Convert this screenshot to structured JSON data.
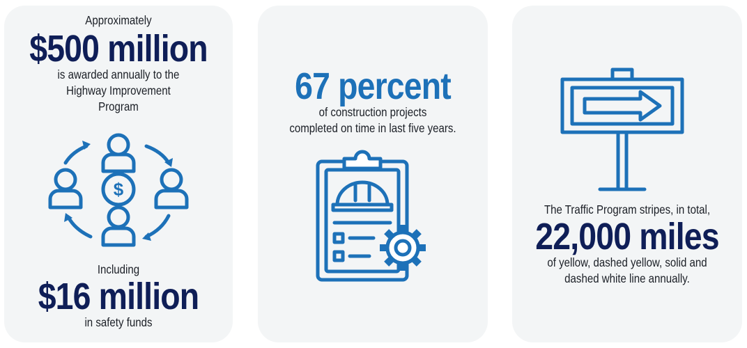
{
  "funding": {
    "intro": "Approximately",
    "amount": "$500 million",
    "line1": "is awarded annually to the",
    "line2": "Highway Improvement",
    "line3": "Program",
    "icon": "money-people-cycle-icon",
    "including": "Including",
    "safety_amount": "$16 million",
    "safety_text": "in safety funds"
  },
  "construction": {
    "stat": "67 percent",
    "line1": "of construction projects",
    "line2": "completed on time in last five years.",
    "icon": "clipboard-hardhat-gear-icon"
  },
  "traffic": {
    "icon": "direction-sign-icon",
    "line1": "The Traffic Program stripes, in total,",
    "stat": "22,000 miles",
    "line2": "of yellow, dashed yellow, solid and",
    "line3": "dashed white line annually."
  },
  "colors": {
    "navy": "#0f1e57",
    "blue": "#1d71b8",
    "card_bg": "#f3f5f6"
  }
}
